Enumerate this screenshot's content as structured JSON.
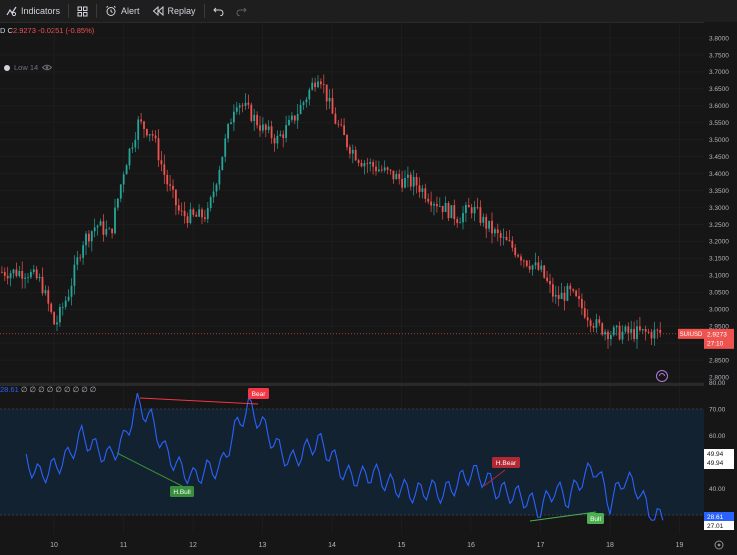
{
  "toolbar": {
    "indicators_label": "Indicators",
    "alert_label": "Alert",
    "replay_label": "Replay"
  },
  "ohlc": {
    "prefix": "D",
    "close_label": "C",
    "close_value": "2.9273",
    "change": "-0.0251",
    "change_pct": "(-0.85%)"
  },
  "legend": {
    "indicator_label": "Low 14"
  },
  "rsi_legend": {
    "value": "28.61",
    "params": "∅ ∅ ∅ ∅ ∅ ∅ ∅ ∅ ∅"
  },
  "price_axis": {
    "labels": [
      "3.8000",
      "3.7500",
      "3.7000",
      "3.6500",
      "3.6000",
      "3.5500",
      "3.5000",
      "3.4500",
      "3.4000",
      "3.3500",
      "3.3000",
      "3.2500",
      "3.2000",
      "3.1500",
      "3.1000",
      "3.0500",
      "3.0000",
      "2.9500",
      "2.9000",
      "2.8500",
      "2.8000"
    ],
    "symbol_tag": "SUIUSD",
    "last_price": "2.9273",
    "countdown": "27:10"
  },
  "rsi_axis": {
    "labels": [
      "80.00",
      "70.00",
      "60.00",
      "50.00",
      "40.00",
      "30.00"
    ],
    "tag_upper": "49.94",
    "tag_lower": "49.94",
    "tag_current": "28.61",
    "tag_next": "27.01"
  },
  "time_axis": {
    "labels": [
      "10",
      "11",
      "12",
      "13",
      "14",
      "15",
      "16",
      "17",
      "18",
      "19"
    ]
  },
  "divergence_labels": {
    "bear": "Bear",
    "hidden_bull": "H.Bull",
    "hidden_bear": "H.Bear",
    "bull": "Bull"
  },
  "colors": {
    "up": "#26a69a",
    "down": "#ef5350",
    "rsi": "#2962ff",
    "bear_label": "#f23645",
    "bull_label": "#4caf50",
    "hbear_label": "#b22833",
    "hbull_label": "#388e3c"
  },
  "chart_data": {
    "type": "line",
    "title": "",
    "price_series": {
      "name": "SUIUSD",
      "x": [
        "9.6",
        "9.8",
        "10.0",
        "10.2",
        "10.4",
        "10.6",
        "10.8",
        "11.0",
        "11.2",
        "11.4",
        "11.6",
        "11.8",
        "12.0",
        "12.2",
        "12.4",
        "12.6",
        "12.8",
        "13.0",
        "13.2",
        "13.4",
        "13.6",
        "13.8",
        "14.0",
        "14.2",
        "14.4",
        "14.6",
        "14.8",
        "15.0",
        "15.2",
        "15.4",
        "15.6",
        "15.8",
        "16.0",
        "16.2",
        "16.4",
        "16.6",
        "16.8",
        "17.0",
        "17.2",
        "17.4",
        "17.6",
        "17.8",
        "18.0",
        "18.2",
        "18.4",
        "18.6"
      ],
      "values": [
        3.11,
        3.08,
        2.95,
        3.05,
        3.2,
        3.25,
        3.22,
        3.42,
        3.55,
        3.52,
        3.38,
        3.28,
        3.27,
        3.28,
        3.45,
        3.62,
        3.58,
        3.53,
        3.5,
        3.55,
        3.62,
        3.7,
        3.57,
        3.49,
        3.44,
        3.42,
        3.4,
        3.38,
        3.37,
        3.33,
        3.3,
        3.27,
        3.3,
        3.25,
        3.21,
        3.18,
        3.14,
        3.11,
        3.03,
        3.05,
        3.0,
        2.95,
        2.93,
        2.93,
        2.93,
        2.93
      ],
      "ylim": [
        2.8,
        3.8
      ]
    },
    "rsi_series": {
      "x": [
        "9.6",
        "9.8",
        "10.0",
        "10.2",
        "10.4",
        "10.6",
        "10.8",
        "11.0",
        "11.2",
        "11.4",
        "11.6",
        "11.8",
        "12.0",
        "12.2",
        "12.4",
        "12.6",
        "12.8",
        "13.0",
        "13.2",
        "13.4",
        "13.6",
        "13.8",
        "14.0",
        "14.2",
        "14.4",
        "14.6",
        "14.8",
        "15.0",
        "15.2",
        "15.4",
        "15.6",
        "15.8",
        "16.0",
        "16.2",
        "16.4",
        "16.6",
        "16.8",
        "17.0",
        "17.2",
        "17.4",
        "17.6",
        "17.8",
        "18.0",
        "18.2",
        "18.4",
        "18.6"
      ],
      "values": [
        50,
        45,
        48,
        52,
        60,
        55,
        52,
        58,
        72,
        66,
        54,
        48,
        44,
        47,
        48,
        62,
        71,
        64,
        56,
        50,
        54,
        58,
        52,
        45,
        44,
        46,
        42,
        40,
        38,
        40,
        38,
        42,
        46,
        44,
        39,
        38,
        36,
        32,
        40,
        36,
        44,
        48,
        34,
        44,
        40,
        29
      ],
      "ylim": [
        30,
        80
      ]
    },
    "xlabel": "",
    "ylabel": "",
    "grid": true
  }
}
